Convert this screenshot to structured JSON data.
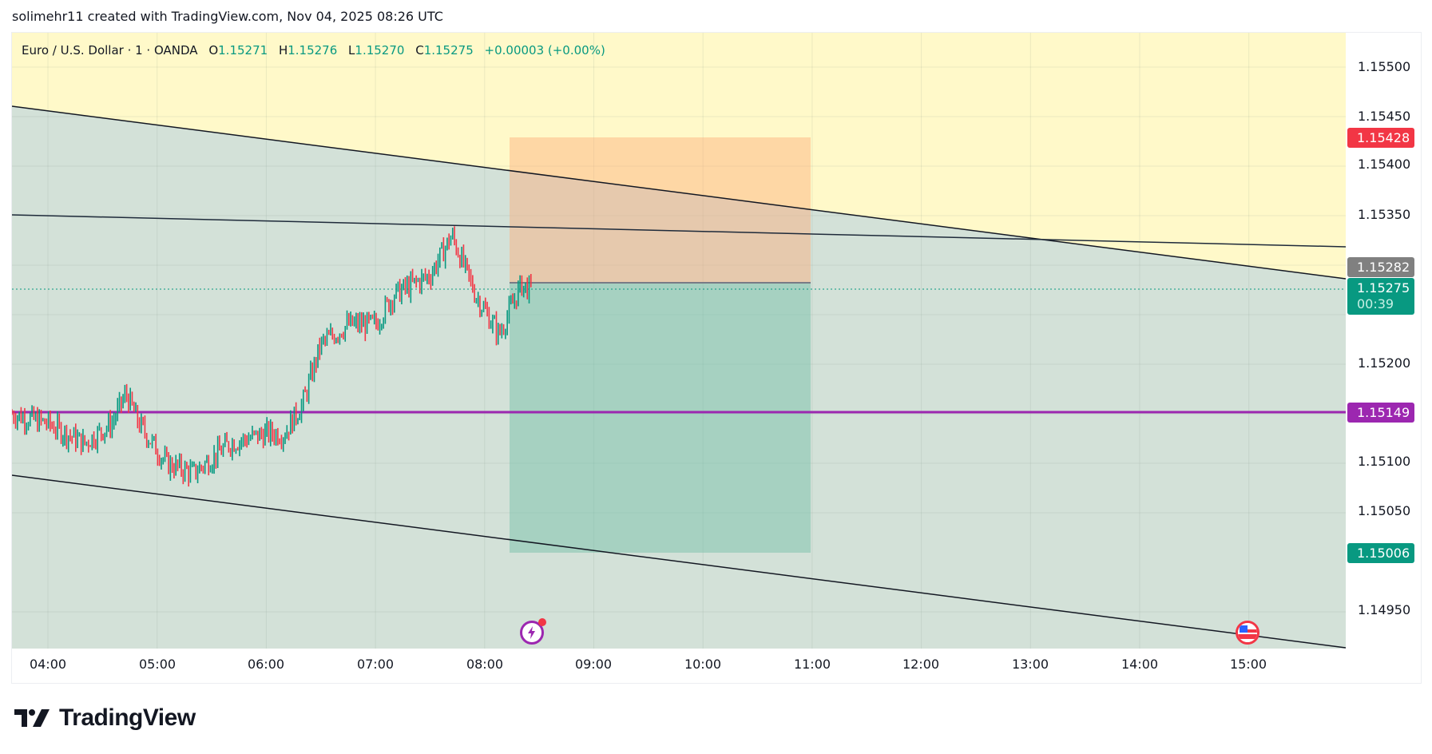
{
  "attribution": "solimehr11 created with TradingView.com, Nov 04, 2025 08:26 UTC",
  "legend": {
    "symbol": "Euro / U.S. Dollar · 1 · OANDA",
    "o_label": "O",
    "o_value": "1.15271",
    "h_label": "H",
    "h_value": "1.15276",
    "l_label": "L",
    "l_value": "1.15270",
    "c_label": "C",
    "c_value": "1.15275",
    "change": "+0.00003 (+0.00%)"
  },
  "price_axis": {
    "ticks": [
      "1.15500",
      "1.15450",
      "1.15400",
      "1.15350",
      "1.15200",
      "1.15100",
      "1.15050",
      "1.14950"
    ],
    "tags": {
      "stop_loss": {
        "value": "1.15428",
        "color": "#f23645"
      },
      "entry": {
        "value": "1.15282",
        "color": "#808080"
      },
      "current": {
        "value": "1.15275",
        "countdown": "00:39",
        "color": "#089981"
      },
      "level": {
        "value": "1.15149",
        "color": "#9c27b0"
      },
      "take_profit": {
        "value": "1.15006",
        "color": "#089981"
      }
    }
  },
  "time_axis": {
    "ticks": [
      "04:00",
      "05:00",
      "06:00",
      "07:00",
      "08:00",
      "09:00",
      "10:00",
      "11:00",
      "12:00",
      "13:00",
      "14:00",
      "15:00"
    ]
  },
  "markers": {
    "lightning": "event-lightning-icon",
    "us_flag": "us-economic-event-icon"
  },
  "logo": {
    "text": "TradingView"
  },
  "colors": {
    "up": "#089981",
    "down": "#f23645",
    "purple": "#9c27b0",
    "bg_yellow": "#fff9c9",
    "bg_channel": "#d3e1d8",
    "sl_box": "#fdd2ad",
    "tp_box": "#a9d4c6"
  },
  "chart_data": {
    "type": "candlestick",
    "title": "Euro / U.S. Dollar · 1 · OANDA",
    "xlabel": "",
    "ylabel": "",
    "ylim": [
      1.1491,
      1.1557
    ],
    "x_ticks": [
      "04:00",
      "05:00",
      "06:00",
      "07:00",
      "08:00",
      "09:00",
      "10:00",
      "11:00",
      "12:00",
      "13:00",
      "14:00",
      "15:00"
    ],
    "y_ticks": [
      1.155,
      1.1545,
      1.154,
      1.1535,
      1.152,
      1.151,
      1.1505,
      1.1495
    ],
    "grid": true,
    "ohlc_last": {
      "open": 1.15271,
      "high": 1.15276,
      "low": 1.1527,
      "close": 1.15275
    },
    "horizontal_levels": [
      {
        "price": 1.15149,
        "color": "#9c27b0"
      }
    ],
    "position_tool": {
      "type": "short",
      "entry": 1.15282,
      "stop": 1.15428,
      "target": 1.15006,
      "start": "08:13",
      "end": "11:00"
    },
    "trendlines": [
      {
        "from": [
          "03:40",
          1.15462
        ],
        "to": [
          "15:55",
          1.15282
        ]
      },
      {
        "from": [
          "03:40",
          1.15352
        ],
        "to": [
          "15:55",
          1.1532
        ]
      },
      {
        "from": [
          "03:40",
          1.15086
        ],
        "to": [
          "15:55",
          1.14912
        ]
      }
    ],
    "series_close_path": [
      [
        "03:40",
        1.1515
      ],
      [
        "04:00",
        1.1514
      ],
      [
        "04:20",
        1.1512
      ],
      [
        "04:35",
        1.1514
      ],
      [
        "04:43",
        1.1517
      ],
      [
        "04:50",
        1.1514
      ],
      [
        "05:05",
        1.151
      ],
      [
        "05:20",
        1.1509
      ],
      [
        "05:40",
        1.1512
      ],
      [
        "06:00",
        1.1513
      ],
      [
        "06:10",
        1.1513
      ],
      [
        "06:20",
        1.1516
      ],
      [
        "06:30",
        1.1522
      ],
      [
        "06:45",
        1.1524
      ],
      [
        "07:00",
        1.1524
      ],
      [
        "07:10",
        1.1527
      ],
      [
        "07:30",
        1.1529
      ],
      [
        "07:42",
        1.1533
      ],
      [
        "07:55",
        1.1527
      ],
      [
        "08:08",
        1.1523
      ],
      [
        "08:20",
        1.1528
      ],
      [
        "08:26",
        1.15275
      ]
    ]
  }
}
